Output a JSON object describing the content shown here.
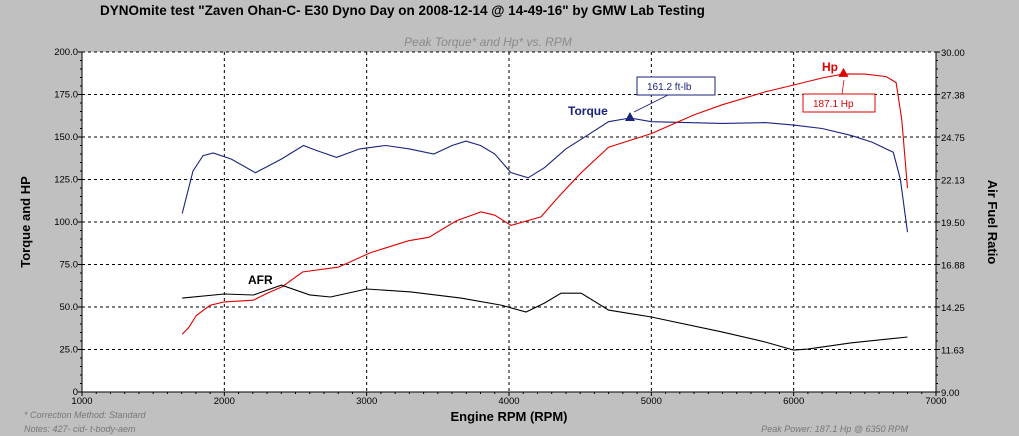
{
  "chart_data": {
    "type": "line",
    "title": "DYNOmite test \"Zaven Ohan-C- E30 Dyno Day on 2008-12-14 @ 14-49-16\" by GMW Lab Testing",
    "subtitle": "Peak Torque* and Hp* vs. RPM",
    "xlabel": "Engine RPM (RPM)",
    "ylabel": "Torque and HP",
    "y2label": "Air Fuel Ratio",
    "xlim": [
      1000,
      7000
    ],
    "ylim": [
      0,
      200
    ],
    "y2lim": [
      9.0,
      30.0
    ],
    "xticks": [
      "1000",
      "2000",
      "3000",
      "4000",
      "5000",
      "6000",
      "7000"
    ],
    "yticks": [
      "0",
      "25.0",
      "50.0",
      "75.0",
      "100.0",
      "125.0",
      "150.0",
      "175.0",
      "200.0"
    ],
    "y2ticks": [
      "9.00",
      "11.63",
      "14.25",
      "16.88",
      "19.50",
      "22.13",
      "24.75",
      "27.38",
      "30.00"
    ],
    "grid": true,
    "series": [
      {
        "name": "Torque",
        "axis": "left",
        "color": "#1a237e",
        "x": [
          1704,
          1780,
          1850,
          1922,
          2050,
          2218,
          2400,
          2556,
          2650,
          2789,
          2950,
          3134,
          3300,
          3472,
          3600,
          3697,
          3800,
          3900,
          4014,
          4134,
          4250,
          4400,
          4550,
          4700,
          4850,
          5000,
          5250,
          5500,
          5800,
          6000,
          6200,
          6400,
          6550,
          6700,
          6750,
          6800
        ],
        "y": [
          105,
          130,
          139,
          140.6,
          137,
          129,
          137,
          145,
          142,
          138,
          143,
          145,
          143,
          140,
          145,
          147.6,
          145,
          140,
          129,
          126,
          132,
          143,
          151,
          159,
          161.2,
          159,
          158.5,
          158,
          158.5,
          157,
          155,
          151,
          147,
          141,
          125,
          94
        ]
      },
      {
        "name": "Hp",
        "axis": "left",
        "color": "#e00000",
        "x": [
          1704,
          1750,
          1803,
          1900,
          2000,
          2204,
          2300,
          2408,
          2549,
          2803,
          3028,
          3296,
          3437,
          3627,
          3803,
          3900,
          4014,
          4225,
          4350,
          4507,
          4700,
          5000,
          5300,
          5500,
          5800,
          6000,
          6200,
          6350,
          6500,
          6650,
          6720,
          6760,
          6800
        ],
        "y": [
          34,
          38,
          45,
          51,
          53,
          54,
          58,
          62,
          70.6,
          73.5,
          82,
          89,
          91,
          100.6,
          106,
          104,
          98,
          103,
          115,
          129,
          144,
          152,
          163,
          169,
          176.5,
          180.6,
          184.7,
          187.1,
          187,
          185.5,
          182,
          160,
          120
        ]
      },
      {
        "name": "AFR",
        "axis": "right",
        "color": "#000000",
        "x": [
          1704,
          2000,
          2204,
          2401,
          2600,
          2746,
          3000,
          3310,
          3662,
          3944,
          4120,
          4250,
          4366,
          4507,
          4700,
          5000,
          5500,
          5800,
          6000,
          6100,
          6400,
          6800
        ],
        "y": [
          14.8,
          15.05,
          14.99,
          15.6,
          15.0,
          14.87,
          15.36,
          15.18,
          14.8,
          14.37,
          13.94,
          14.5,
          15.1,
          15.1,
          14.06,
          13.63,
          12.7,
          12.09,
          11.59,
          11.65,
          12.03,
          12.4
        ]
      }
    ],
    "annotations": {
      "torque_label": "Torque",
      "hp_label": "Hp",
      "afr_label": "AFR",
      "peak_torque": {
        "label": "161.2 ft-lb",
        "rpm": 4850,
        "value": 161.2
      },
      "peak_hp": {
        "label": "187.1 Hp",
        "rpm": 6350,
        "value": 187.1
      }
    }
  },
  "footer": {
    "correction": "* Correction Method: Standard",
    "notes": "Notes: 427- cid- t-body-aem",
    "peak_power": "Peak Power: 187.1 Hp @ 6350 RPM"
  }
}
